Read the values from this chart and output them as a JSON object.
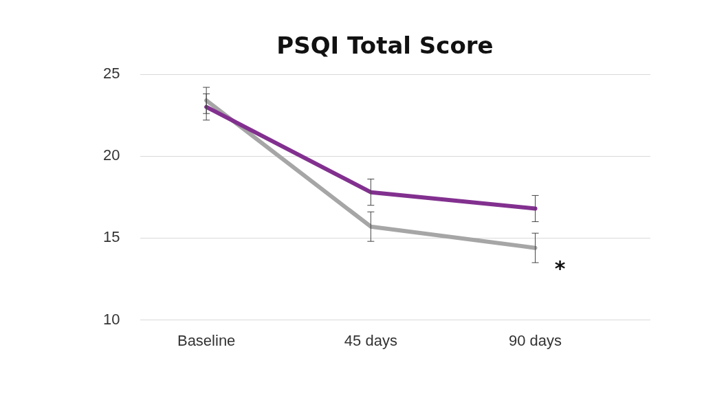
{
  "chart_data": {
    "type": "line",
    "title": "PSQI Total Score",
    "categories": [
      "Baseline",
      "45 days",
      "90 days"
    ],
    "series": [
      {
        "color": "#82308f",
        "values": [
          23.0,
          17.8,
          16.8
        ],
        "errors": [
          0.8,
          0.8,
          0.8
        ]
      },
      {
        "color": "#a6a6a6",
        "values": [
          23.4,
          15.7,
          14.4
        ],
        "errors": [
          0.8,
          0.9,
          0.9
        ]
      }
    ],
    "ylim": [
      10,
      25
    ],
    "yticks": [
      10,
      15,
      20,
      25
    ],
    "grid": "y",
    "legend": false,
    "marker": "none",
    "line_style": "solid",
    "annotations": [
      "*"
    ]
  }
}
